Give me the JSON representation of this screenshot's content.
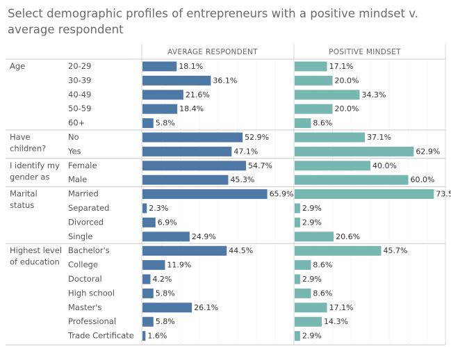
{
  "title": "Select demographic profiles of entrepreneurs with a positive mindset v. average respondent",
  "chart_data": {
    "type": "bar",
    "orientation": "horizontal",
    "panels": [
      "AVERAGE RESPONDENT",
      "POSITIVE MINDSET"
    ],
    "colors": {
      "AVERAGE RESPONDENT": "#4e79a7",
      "POSITIVE MINDSET": "#76b7b2"
    },
    "value_format": "percent_1dp",
    "xlim": [
      0,
      80
    ],
    "grid": "dotted vertical",
    "groups": [
      {
        "label": [
          "Age"
        ],
        "rows": [
          {
            "category": "20-29",
            "average": 18.1,
            "positive": 17.1
          },
          {
            "category": "30-39",
            "average": 36.1,
            "positive": 20.0
          },
          {
            "category": "40-49",
            "average": 21.6,
            "positive": 34.3
          },
          {
            "category": "50-59",
            "average": 18.4,
            "positive": 20.0
          },
          {
            "category": "60+",
            "average": 5.8,
            "positive": 8.6
          }
        ]
      },
      {
        "label": [
          "Have",
          "children?"
        ],
        "rows": [
          {
            "category": "No",
            "average": 52.9,
            "positive": 37.1
          },
          {
            "category": "Yes",
            "average": 47.1,
            "positive": 62.9
          }
        ]
      },
      {
        "label": [
          "I identify my",
          "gender as"
        ],
        "rows": [
          {
            "category": "Female",
            "average": 54.7,
            "positive": 40.0
          },
          {
            "category": "Male",
            "average": 45.3,
            "positive": 60.0
          }
        ]
      },
      {
        "label": [
          "Marital",
          "status"
        ],
        "rows": [
          {
            "category": "Married",
            "average": 65.9,
            "positive": 73.5
          },
          {
            "category": "Separated",
            "average": 2.3,
            "positive": 2.9
          },
          {
            "category": "Divorced",
            "average": 6.9,
            "positive": 2.9
          },
          {
            "category": "Single",
            "average": 24.9,
            "positive": 20.6
          }
        ]
      },
      {
        "label": [
          "Highest level",
          "of education"
        ],
        "rows": [
          {
            "category": "Bachelor's",
            "average": 44.5,
            "positive": 45.7
          },
          {
            "category": "College",
            "average": 11.9,
            "positive": 8.6
          },
          {
            "category": "Doctoral",
            "average": 4.2,
            "positive": 2.9
          },
          {
            "category": "High school",
            "average": 5.8,
            "positive": 8.6
          },
          {
            "category": "Master's",
            "average": 26.1,
            "positive": 17.1
          },
          {
            "category": "Professional",
            "average": 5.8,
            "positive": 14.3
          },
          {
            "category": "Trade Certificate",
            "average": 1.6,
            "positive": 2.9
          }
        ]
      }
    ]
  }
}
